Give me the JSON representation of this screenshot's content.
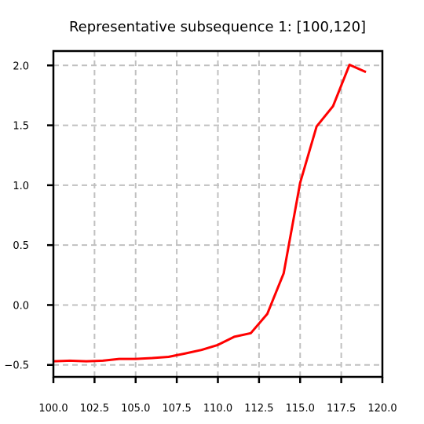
{
  "chart_data": {
    "type": "line",
    "title": "Representative subsequence 1: [100,120]",
    "xlabel": "",
    "ylabel": "",
    "xlim": [
      100.0,
      120.0
    ],
    "ylim": [
      -0.6,
      2.12
    ],
    "xticks": [
      100.0,
      102.5,
      105.0,
      107.5,
      110.0,
      112.5,
      115.0,
      117.5,
      120.0
    ],
    "xtick_labels": [
      "100.0",
      "102.5",
      "105.0",
      "107.5",
      "110.0",
      "112.5",
      "115.0",
      "117.5",
      "120.0"
    ],
    "yticks": [
      -0.5,
      0.0,
      0.5,
      1.0,
      1.5,
      2.0
    ],
    "ytick_labels": [
      "−0.5",
      "0.0",
      "0.5",
      "1.0",
      "1.5",
      "2.0"
    ],
    "grid": true,
    "series": [
      {
        "color": "#ff0000",
        "x": [
          100,
          101,
          102,
          103,
          104,
          105,
          106,
          107,
          108,
          109,
          110,
          111,
          112,
          113,
          114,
          115,
          116,
          117,
          118,
          119
        ],
        "y": [
          -0.47,
          -0.465,
          -0.47,
          -0.465,
          -0.45,
          -0.45,
          -0.443,
          -0.433,
          -0.405,
          -0.375,
          -0.333,
          -0.265,
          -0.235,
          -0.075,
          0.265,
          1.02,
          1.49,
          1.66,
          2.005,
          1.945
        ]
      }
    ]
  }
}
